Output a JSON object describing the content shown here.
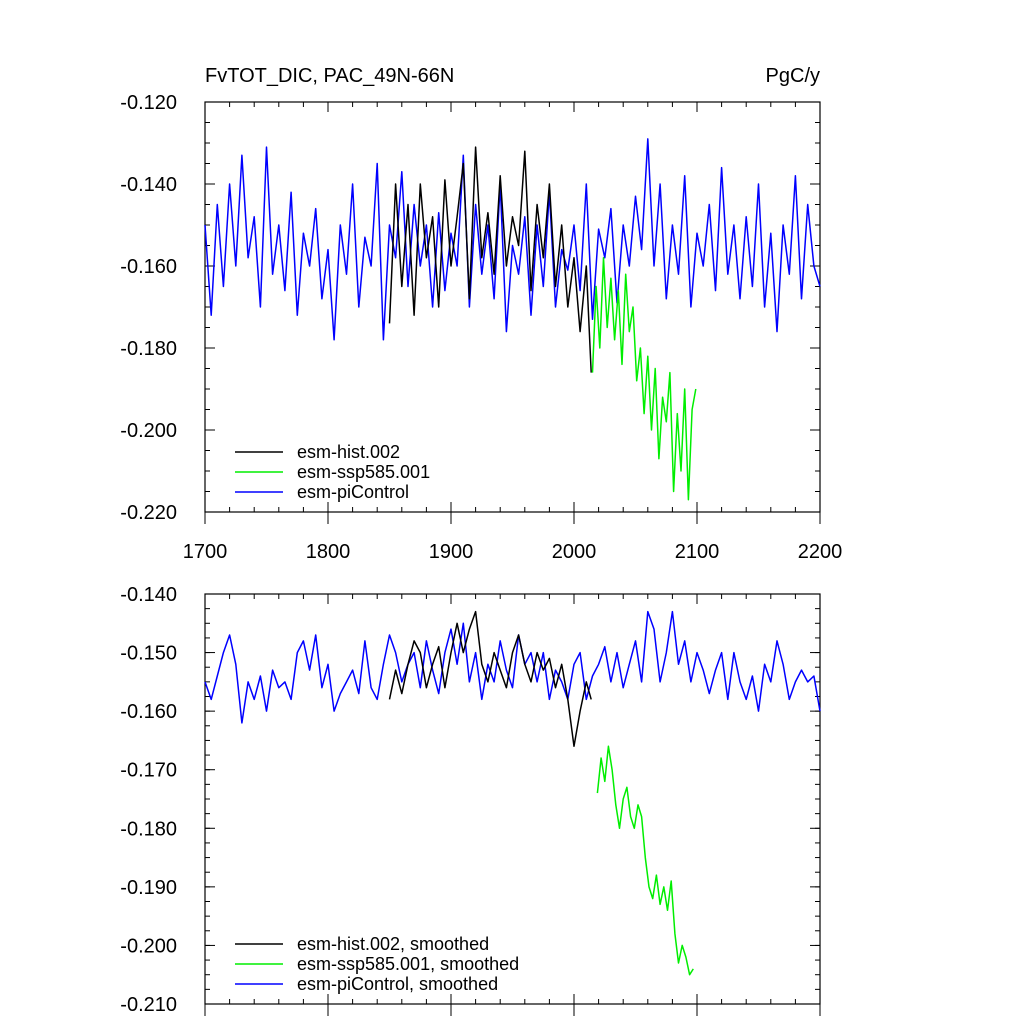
{
  "chart_data": [
    {
      "type": "line",
      "title": "FvTOT_DIC, PAC_49N-66N",
      "units": "PgC/y",
      "xlim": [
        1700,
        2200
      ],
      "ylim": [
        -0.22,
        -0.12
      ],
      "xticks": [
        1700,
        1800,
        1900,
        2000,
        2100,
        2200
      ],
      "xtick_labels": [
        "1700",
        "1800",
        "1900",
        "2000",
        "2100",
        "2200"
      ],
      "yticks": [
        -0.12,
        -0.14,
        -0.16,
        -0.18,
        -0.2,
        -0.22
      ],
      "ytick_labels": [
        "-0.120",
        "-0.140",
        "-0.160",
        "-0.180",
        "-0.200",
        "-0.220"
      ],
      "series": [
        {
          "name": "esm-piControl",
          "color": "#0000ff",
          "x": [
            1700,
            1705,
            1710,
            1715,
            1720,
            1725,
            1730,
            1735,
            1740,
            1745,
            1750,
            1755,
            1760,
            1765,
            1770,
            1775,
            1780,
            1785,
            1790,
            1795,
            1800,
            1805,
            1810,
            1815,
            1820,
            1825,
            1830,
            1835,
            1840,
            1845,
            1850,
            1855,
            1860,
            1865,
            1870,
            1875,
            1880,
            1885,
            1890,
            1895,
            1900,
            1905,
            1910,
            1915,
            1920,
            1925,
            1930,
            1935,
            1940,
            1945,
            1950,
            1955,
            1960,
            1965,
            1970,
            1975,
            1980,
            1985,
            1990,
            1995,
            2000,
            2005,
            2010,
            2015,
            2020,
            2025,
            2030,
            2035,
            2040,
            2045,
            2050,
            2055,
            2060,
            2065,
            2070,
            2075,
            2080,
            2085,
            2090,
            2095,
            2100,
            2105,
            2110,
            2115,
            2120,
            2125,
            2130,
            2135,
            2140,
            2145,
            2150,
            2155,
            2160,
            2165,
            2170,
            2175,
            2180,
            2185,
            2190,
            2195,
            2200
          ],
          "values": [
            -0.15,
            -0.172,
            -0.145,
            -0.165,
            -0.14,
            -0.16,
            -0.133,
            -0.158,
            -0.148,
            -0.17,
            -0.131,
            -0.162,
            -0.15,
            -0.166,
            -0.142,
            -0.172,
            -0.152,
            -0.16,
            -0.146,
            -0.168,
            -0.156,
            -0.178,
            -0.15,
            -0.162,
            -0.14,
            -0.17,
            -0.153,
            -0.16,
            -0.135,
            -0.178,
            -0.15,
            -0.158,
            -0.137,
            -0.165,
            -0.145,
            -0.16,
            -0.15,
            -0.17,
            -0.147,
            -0.166,
            -0.152,
            -0.16,
            -0.133,
            -0.17,
            -0.145,
            -0.162,
            -0.15,
            -0.168,
            -0.14,
            -0.176,
            -0.155,
            -0.162,
            -0.148,
            -0.172,
            -0.15,
            -0.165,
            -0.142,
            -0.17,
            -0.156,
            -0.161,
            -0.15,
            -0.166,
            -0.14,
            -0.173,
            -0.151,
            -0.158,
            -0.146,
            -0.169,
            -0.15,
            -0.16,
            -0.143,
            -0.156,
            -0.129,
            -0.16,
            -0.14,
            -0.168,
            -0.15,
            -0.162,
            -0.138,
            -0.17,
            -0.152,
            -0.16,
            -0.145,
            -0.166,
            -0.136,
            -0.162,
            -0.15,
            -0.168,
            -0.148,
            -0.165,
            -0.14,
            -0.17,
            -0.152,
            -0.176,
            -0.15,
            -0.162,
            -0.138,
            -0.168,
            -0.145,
            -0.16,
            -0.165
          ]
        },
        {
          "name": "esm-hist.002",
          "color": "#000000",
          "x": [
            1850,
            1855,
            1860,
            1865,
            1870,
            1875,
            1880,
            1885,
            1890,
            1895,
            1900,
            1905,
            1910,
            1915,
            1920,
            1925,
            1930,
            1935,
            1940,
            1945,
            1950,
            1955,
            1960,
            1965,
            1970,
            1975,
            1980,
            1985,
            1990,
            1995,
            2000,
            2005,
            2010,
            2014
          ],
          "values": [
            -0.174,
            -0.14,
            -0.165,
            -0.145,
            -0.172,
            -0.14,
            -0.158,
            -0.148,
            -0.17,
            -0.139,
            -0.16,
            -0.148,
            -0.135,
            -0.168,
            -0.131,
            -0.158,
            -0.147,
            -0.162,
            -0.138,
            -0.16,
            -0.148,
            -0.155,
            -0.132,
            -0.166,
            -0.145,
            -0.158,
            -0.14,
            -0.165,
            -0.15,
            -0.17,
            -0.158,
            -0.176,
            -0.16,
            -0.186
          ]
        },
        {
          "name": "esm-ssp585.001",
          "color": "#00ee00",
          "x": [
            2015,
            2018,
            2021,
            2024,
            2027,
            2030,
            2033,
            2036,
            2039,
            2042,
            2045,
            2048,
            2051,
            2054,
            2057,
            2060,
            2063,
            2066,
            2069,
            2072,
            2075,
            2078,
            2081,
            2084,
            2087,
            2090,
            2093,
            2096,
            2099
          ],
          "values": [
            -0.186,
            -0.165,
            -0.18,
            -0.158,
            -0.175,
            -0.163,
            -0.178,
            -0.166,
            -0.184,
            -0.162,
            -0.176,
            -0.17,
            -0.188,
            -0.18,
            -0.196,
            -0.182,
            -0.2,
            -0.185,
            -0.207,
            -0.192,
            -0.198,
            -0.186,
            -0.215,
            -0.196,
            -0.21,
            -0.19,
            -0.217,
            -0.195,
            -0.19
          ]
        }
      ],
      "legend": [
        "esm-hist.002",
        "esm-ssp585.001",
        "esm-piControl"
      ],
      "legend_position": "bottom-left"
    },
    {
      "type": "line",
      "title": "",
      "xlim": [
        1700,
        2200
      ],
      "ylim": [
        -0.21,
        -0.14
      ],
      "yticks": [
        -0.14,
        -0.15,
        -0.16,
        -0.17,
        -0.18,
        -0.19,
        -0.2,
        -0.21
      ],
      "ytick_labels": [
        "-0.140",
        "-0.150",
        "-0.160",
        "-0.170",
        "-0.180",
        "-0.190",
        "-0.200",
        "-0.210"
      ],
      "series": [
        {
          "name": "esm-piControl, smoothed",
          "color": "#0000ff",
          "x": [
            1700,
            1705,
            1710,
            1715,
            1720,
            1725,
            1730,
            1735,
            1740,
            1745,
            1750,
            1755,
            1760,
            1765,
            1770,
            1775,
            1780,
            1785,
            1790,
            1795,
            1800,
            1805,
            1810,
            1815,
            1820,
            1825,
            1830,
            1835,
            1840,
            1845,
            1850,
            1855,
            1860,
            1865,
            1870,
            1875,
            1880,
            1885,
            1890,
            1895,
            1900,
            1905,
            1910,
            1915,
            1920,
            1925,
            1930,
            1935,
            1940,
            1945,
            1950,
            1955,
            1960,
            1965,
            1970,
            1975,
            1980,
            1985,
            1990,
            1995,
            2000,
            2005,
            2010,
            2015,
            2020,
            2025,
            2030,
            2035,
            2040,
            2045,
            2050,
            2055,
            2060,
            2065,
            2070,
            2075,
            2080,
            2085,
            2090,
            2095,
            2100,
            2105,
            2110,
            2115,
            2120,
            2125,
            2130,
            2135,
            2140,
            2145,
            2150,
            2155,
            2160,
            2165,
            2170,
            2175,
            2180,
            2185,
            2190,
            2195,
            2200
          ],
          "values": [
            -0.155,
            -0.158,
            -0.154,
            -0.15,
            -0.147,
            -0.152,
            -0.162,
            -0.155,
            -0.158,
            -0.154,
            -0.16,
            -0.153,
            -0.156,
            -0.155,
            -0.158,
            -0.15,
            -0.148,
            -0.153,
            -0.147,
            -0.156,
            -0.152,
            -0.16,
            -0.157,
            -0.155,
            -0.153,
            -0.157,
            -0.148,
            -0.156,
            -0.158,
            -0.152,
            -0.147,
            -0.15,
            -0.155,
            -0.152,
            -0.15,
            -0.156,
            -0.148,
            -0.153,
            -0.157,
            -0.15,
            -0.146,
            -0.152,
            -0.145,
            -0.155,
            -0.15,
            -0.158,
            -0.152,
            -0.155,
            -0.148,
            -0.153,
            -0.156,
            -0.147,
            -0.152,
            -0.15,
            -0.155,
            -0.15,
            -0.158,
            -0.153,
            -0.155,
            -0.158,
            -0.152,
            -0.15,
            -0.158,
            -0.154,
            -0.152,
            -0.149,
            -0.155,
            -0.15,
            -0.156,
            -0.152,
            -0.148,
            -0.155,
            -0.143,
            -0.146,
            -0.155,
            -0.15,
            -0.143,
            -0.152,
            -0.148,
            -0.155,
            -0.15,
            -0.153,
            -0.157,
            -0.153,
            -0.15,
            -0.158,
            -0.15,
            -0.155,
            -0.158,
            -0.154,
            -0.16,
            -0.152,
            -0.155,
            -0.148,
            -0.152,
            -0.158,
            -0.155,
            -0.153,
            -0.155,
            -0.154,
            -0.16
          ]
        },
        {
          "name": "esm-hist.002, smoothed",
          "color": "#000000",
          "x": [
            1850,
            1855,
            1860,
            1865,
            1870,
            1875,
            1880,
            1885,
            1890,
            1895,
            1900,
            1905,
            1910,
            1915,
            1920,
            1925,
            1930,
            1935,
            1940,
            1945,
            1950,
            1955,
            1960,
            1965,
            1970,
            1975,
            1980,
            1985,
            1990,
            1995,
            2000,
            2005,
            2010,
            2014
          ],
          "values": [
            -0.158,
            -0.153,
            -0.157,
            -0.152,
            -0.148,
            -0.15,
            -0.156,
            -0.152,
            -0.149,
            -0.156,
            -0.15,
            -0.145,
            -0.15,
            -0.146,
            -0.143,
            -0.152,
            -0.155,
            -0.15,
            -0.153,
            -0.156,
            -0.15,
            -0.147,
            -0.152,
            -0.155,
            -0.15,
            -0.153,
            -0.151,
            -0.156,
            -0.152,
            -0.158,
            -0.166,
            -0.16,
            -0.155,
            -0.158
          ]
        },
        {
          "name": "esm-ssp585.001, smoothed",
          "color": "#00ee00",
          "x": [
            2019,
            2022,
            2025,
            2028,
            2031,
            2034,
            2037,
            2040,
            2043,
            2046,
            2049,
            2052,
            2055,
            2058,
            2061,
            2064,
            2067,
            2070,
            2073,
            2076,
            2079,
            2082,
            2085,
            2088,
            2091,
            2094,
            2097
          ],
          "values": [
            -0.174,
            -0.168,
            -0.172,
            -0.166,
            -0.17,
            -0.176,
            -0.18,
            -0.175,
            -0.173,
            -0.178,
            -0.18,
            -0.176,
            -0.178,
            -0.185,
            -0.19,
            -0.192,
            -0.188,
            -0.193,
            -0.19,
            -0.194,
            -0.189,
            -0.198,
            -0.203,
            -0.2,
            -0.202,
            -0.205,
            -0.204
          ]
        }
      ],
      "legend": [
        "esm-hist.002, smoothed",
        "esm-ssp585.001, smoothed",
        "esm-piControl, smoothed"
      ],
      "legend_position": "bottom-left"
    }
  ]
}
